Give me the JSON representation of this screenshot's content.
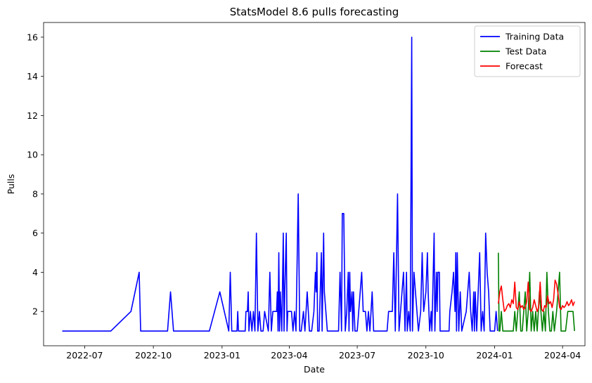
{
  "chart_data": {
    "type": "line",
    "title": "StatsModel 8.6 pulls forecasting",
    "xlabel": "Date",
    "ylabel": "Pulls",
    "xlim": [
      "2022-05-07",
      "2024-05-01"
    ],
    "ylim": [
      0.25,
      16.75
    ],
    "x_ticks": [
      "2022-07",
      "2022-10",
      "2023-01",
      "2023-04",
      "2023-07",
      "2023-10",
      "2024-01",
      "2024-04"
    ],
    "y_ticks": [
      2,
      4,
      6,
      8,
      10,
      12,
      14,
      16
    ],
    "grid": false,
    "legend_position": "top-right",
    "series": [
      {
        "name": "Training Data",
        "color": "#0000ff",
        "points": [
          [
            "2022-06-01",
            1
          ],
          [
            "2022-08-05",
            1
          ],
          [
            "2022-09-01",
            2
          ],
          [
            "2022-09-12",
            4
          ],
          [
            "2022-09-14",
            1
          ],
          [
            "2022-10-20",
            1
          ],
          [
            "2022-10-24",
            3
          ],
          [
            "2022-10-28",
            1
          ],
          [
            "2022-12-15",
            1
          ],
          [
            "2022-12-22",
            2
          ],
          [
            "2022-12-29",
            3
          ],
          [
            "2023-01-04",
            2
          ],
          [
            "2023-01-10",
            1
          ],
          [
            "2023-01-12",
            4
          ],
          [
            "2023-01-14",
            1
          ],
          [
            "2023-01-21",
            1
          ],
          [
            "2023-01-22",
            2
          ],
          [
            "2023-01-23",
            1
          ],
          [
            "2023-02-01",
            1
          ],
          [
            "2023-02-02",
            2
          ],
          [
            "2023-02-04",
            2
          ],
          [
            "2023-02-05",
            3
          ],
          [
            "2023-02-06",
            1
          ],
          [
            "2023-02-08",
            2
          ],
          [
            "2023-02-10",
            1
          ],
          [
            "2023-02-12",
            2
          ],
          [
            "2023-02-14",
            1
          ],
          [
            "2023-02-16",
            6
          ],
          [
            "2023-02-18",
            1
          ],
          [
            "2023-02-20",
            2
          ],
          [
            "2023-02-22",
            1
          ],
          [
            "2023-02-25",
            1
          ],
          [
            "2023-02-27",
            2
          ],
          [
            "2023-03-04",
            1
          ],
          [
            "2023-03-06",
            4
          ],
          [
            "2023-03-08",
            1
          ],
          [
            "2023-03-10",
            2
          ],
          [
            "2023-03-15",
            2
          ],
          [
            "2023-03-16",
            3
          ],
          [
            "2023-03-17",
            1
          ],
          [
            "2023-03-18",
            5
          ],
          [
            "2023-03-19",
            1
          ],
          [
            "2023-03-20",
            3
          ],
          [
            "2023-03-22",
            1
          ],
          [
            "2023-03-24",
            6
          ],
          [
            "2023-03-25",
            1
          ],
          [
            "2023-03-26",
            3
          ],
          [
            "2023-03-28",
            6
          ],
          [
            "2023-03-29",
            1
          ],
          [
            "2023-03-30",
            2
          ],
          [
            "2023-04-01",
            2
          ],
          [
            "2023-04-04",
            2
          ],
          [
            "2023-04-06",
            1
          ],
          [
            "2023-04-08",
            2
          ],
          [
            "2023-04-10",
            1
          ],
          [
            "2023-04-13",
            8
          ],
          [
            "2023-04-15",
            1
          ],
          [
            "2023-04-17",
            1
          ],
          [
            "2023-04-20",
            2
          ],
          [
            "2023-04-22",
            1
          ],
          [
            "2023-04-25",
            3
          ],
          [
            "2023-04-28",
            1
          ],
          [
            "2023-05-01",
            1
          ],
          [
            "2023-05-04",
            2
          ],
          [
            "2023-05-06",
            4
          ],
          [
            "2023-05-07",
            3
          ],
          [
            "2023-05-08",
            5
          ],
          [
            "2023-05-09",
            1
          ],
          [
            "2023-05-11",
            1
          ],
          [
            "2023-05-14",
            5
          ],
          [
            "2023-05-15",
            1
          ],
          [
            "2023-05-17",
            6
          ],
          [
            "2023-05-18",
            3
          ],
          [
            "2023-05-20",
            2
          ],
          [
            "2023-05-22",
            1
          ],
          [
            "2023-05-24",
            1
          ],
          [
            "2023-06-06",
            1
          ],
          [
            "2023-06-08",
            4
          ],
          [
            "2023-06-10",
            1
          ],
          [
            "2023-06-11",
            7
          ],
          [
            "2023-06-13",
            7
          ],
          [
            "2023-06-15",
            1
          ],
          [
            "2023-06-17",
            2
          ],
          [
            "2023-06-19",
            4
          ],
          [
            "2023-06-20",
            1
          ],
          [
            "2023-06-21",
            4
          ],
          [
            "2023-06-22",
            2
          ],
          [
            "2023-06-24",
            3
          ],
          [
            "2023-06-25",
            1
          ],
          [
            "2023-06-26",
            3
          ],
          [
            "2023-06-28",
            1
          ],
          [
            "2023-07-01",
            1
          ],
          [
            "2023-07-05",
            3
          ],
          [
            "2023-07-07",
            4
          ],
          [
            "2023-07-09",
            2
          ],
          [
            "2023-07-12",
            2
          ],
          [
            "2023-07-14",
            1
          ],
          [
            "2023-07-16",
            2
          ],
          [
            "2023-07-18",
            1
          ],
          [
            "2023-07-21",
            3
          ],
          [
            "2023-07-23",
            1
          ],
          [
            "2023-08-10",
            1
          ],
          [
            "2023-08-12",
            2
          ],
          [
            "2023-08-17",
            2
          ],
          [
            "2023-08-19",
            5
          ],
          [
            "2023-08-21",
            1
          ],
          [
            "2023-08-24",
            8
          ],
          [
            "2023-08-26",
            1
          ],
          [
            "2023-08-30",
            3
          ],
          [
            "2023-09-01",
            4
          ],
          [
            "2023-09-03",
            1
          ],
          [
            "2023-09-05",
            4
          ],
          [
            "2023-09-06",
            1
          ],
          [
            "2023-09-08",
            2
          ],
          [
            "2023-09-10",
            1
          ],
          [
            "2023-09-12",
            16
          ],
          [
            "2023-09-13",
            1
          ],
          [
            "2023-09-15",
            4
          ],
          [
            "2023-09-17",
            3
          ],
          [
            "2023-09-19",
            2
          ],
          [
            "2023-09-21",
            1
          ],
          [
            "2023-09-24",
            2
          ],
          [
            "2023-09-26",
            5
          ],
          [
            "2023-09-28",
            2
          ],
          [
            "2023-10-01",
            3
          ],
          [
            "2023-10-03",
            5
          ],
          [
            "2023-10-04",
            3
          ],
          [
            "2023-10-06",
            1
          ],
          [
            "2023-10-08",
            2
          ],
          [
            "2023-10-09",
            1
          ],
          [
            "2023-10-12",
            6
          ],
          [
            "2023-10-13",
            1
          ],
          [
            "2023-10-15",
            4
          ],
          [
            "2023-10-16",
            2
          ],
          [
            "2023-10-17",
            4
          ],
          [
            "2023-10-19",
            4
          ],
          [
            "2023-10-20",
            1
          ],
          [
            "2023-10-22",
            1
          ],
          [
            "2023-11-01",
            1
          ],
          [
            "2023-11-02",
            2
          ],
          [
            "2023-11-05",
            3
          ],
          [
            "2023-11-07",
            4
          ],
          [
            "2023-11-09",
            2
          ],
          [
            "2023-11-10",
            5
          ],
          [
            "2023-11-11",
            1
          ],
          [
            "2023-11-12",
            5
          ],
          [
            "2023-11-14",
            1
          ],
          [
            "2023-11-16",
            3
          ],
          [
            "2023-11-18",
            1
          ],
          [
            "2023-11-24",
            2
          ],
          [
            "2023-11-26",
            3
          ],
          [
            "2023-11-28",
            4
          ],
          [
            "2023-11-30",
            2
          ],
          [
            "2023-12-02",
            1
          ],
          [
            "2023-12-04",
            3
          ],
          [
            "2023-12-05",
            1
          ],
          [
            "2023-12-06",
            3
          ],
          [
            "2023-12-08",
            1
          ],
          [
            "2023-12-10",
            3
          ],
          [
            "2023-12-12",
            5
          ],
          [
            "2023-12-14",
            1
          ],
          [
            "2023-12-16",
            2
          ],
          [
            "2023-12-18",
            1
          ],
          [
            "2023-12-20",
            6
          ],
          [
            "2023-12-22",
            4
          ],
          [
            "2023-12-24",
            3
          ],
          [
            "2023-12-26",
            1
          ],
          [
            "2024-01-01",
            1
          ],
          [
            "2024-01-03",
            2
          ],
          [
            "2024-01-05",
            1
          ]
        ]
      },
      {
        "name": "Test Data",
        "color": "#008000",
        "points": [
          [
            "2024-01-06",
            5
          ],
          [
            "2024-01-07",
            1
          ],
          [
            "2024-01-08",
            1
          ],
          [
            "2024-01-10",
            2
          ],
          [
            "2024-01-12",
            1
          ],
          [
            "2024-01-26",
            1
          ],
          [
            "2024-01-28",
            2
          ],
          [
            "2024-01-30",
            1
          ],
          [
            "2024-02-01",
            2
          ],
          [
            "2024-02-03",
            3
          ],
          [
            "2024-02-05",
            1
          ],
          [
            "2024-02-07",
            1
          ],
          [
            "2024-02-09",
            2
          ],
          [
            "2024-02-11",
            3
          ],
          [
            "2024-02-13",
            1
          ],
          [
            "2024-02-15",
            2
          ],
          [
            "2024-02-17",
            4
          ],
          [
            "2024-02-19",
            1
          ],
          [
            "2024-02-21",
            2
          ],
          [
            "2024-02-23",
            1
          ],
          [
            "2024-02-25",
            2
          ],
          [
            "2024-02-27",
            1
          ],
          [
            "2024-03-01",
            3
          ],
          [
            "2024-03-03",
            2
          ],
          [
            "2024-03-05",
            1
          ],
          [
            "2024-03-07",
            2
          ],
          [
            "2024-03-09",
            1
          ],
          [
            "2024-03-11",
            4
          ],
          [
            "2024-03-13",
            2
          ],
          [
            "2024-03-15",
            1
          ],
          [
            "2024-03-17",
            1
          ],
          [
            "2024-03-19",
            2
          ],
          [
            "2024-03-21",
            1
          ],
          [
            "2024-03-24",
            2
          ],
          [
            "2024-03-26",
            3
          ],
          [
            "2024-03-28",
            4
          ],
          [
            "2024-03-30",
            1
          ],
          [
            "2024-04-01",
            1
          ],
          [
            "2024-04-05",
            1
          ],
          [
            "2024-04-08",
            2
          ],
          [
            "2024-04-12",
            2
          ],
          [
            "2024-04-15",
            2
          ],
          [
            "2024-04-17",
            1
          ]
        ]
      },
      {
        "name": "Forecast",
        "color": "#ff0000",
        "points": [
          [
            "2024-01-06",
            2.4
          ],
          [
            "2024-01-08",
            3.0
          ],
          [
            "2024-01-10",
            3.3
          ],
          [
            "2024-01-12",
            2.6
          ],
          [
            "2024-01-14",
            2.0
          ],
          [
            "2024-01-16",
            2.1
          ],
          [
            "2024-01-18",
            2.3
          ],
          [
            "2024-01-20",
            2.4
          ],
          [
            "2024-01-22",
            2.2
          ],
          [
            "2024-01-24",
            2.6
          ],
          [
            "2024-01-26",
            2.4
          ],
          [
            "2024-01-28",
            3.5
          ],
          [
            "2024-01-30",
            2.2
          ],
          [
            "2024-02-01",
            2.1
          ],
          [
            "2024-02-03",
            2.5
          ],
          [
            "2024-02-05",
            2.2
          ],
          [
            "2024-02-07",
            2.3
          ],
          [
            "2024-02-09",
            2.1
          ],
          [
            "2024-02-11",
            2.2
          ],
          [
            "2024-02-13",
            2.5
          ],
          [
            "2024-02-15",
            3.5
          ],
          [
            "2024-02-17",
            2.1
          ],
          [
            "2024-02-19",
            2.0
          ],
          [
            "2024-02-21",
            2.2
          ],
          [
            "2024-02-23",
            2.6
          ],
          [
            "2024-02-25",
            2.3
          ],
          [
            "2024-02-27",
            2.0
          ],
          [
            "2024-02-29",
            2.2
          ],
          [
            "2024-03-02",
            3.5
          ],
          [
            "2024-03-04",
            2.1
          ],
          [
            "2024-03-06",
            2.0
          ],
          [
            "2024-03-08",
            2.3
          ],
          [
            "2024-03-10",
            2.2
          ],
          [
            "2024-03-12",
            2.8
          ],
          [
            "2024-03-14",
            2.4
          ],
          [
            "2024-03-16",
            2.5
          ],
          [
            "2024-03-18",
            2.2
          ],
          [
            "2024-03-20",
            2.6
          ],
          [
            "2024-03-22",
            3.6
          ],
          [
            "2024-03-24",
            3.4
          ],
          [
            "2024-03-26",
            2.9
          ],
          [
            "2024-03-28",
            2.2
          ],
          [
            "2024-03-30",
            2.1
          ],
          [
            "2024-04-01",
            2.3
          ],
          [
            "2024-04-03",
            2.2
          ],
          [
            "2024-04-05",
            2.3
          ],
          [
            "2024-04-07",
            2.5
          ],
          [
            "2024-04-09",
            2.3
          ],
          [
            "2024-04-11",
            2.4
          ],
          [
            "2024-04-13",
            2.6
          ],
          [
            "2024-04-15",
            2.3
          ],
          [
            "2024-04-17",
            2.5
          ]
        ]
      }
    ]
  }
}
